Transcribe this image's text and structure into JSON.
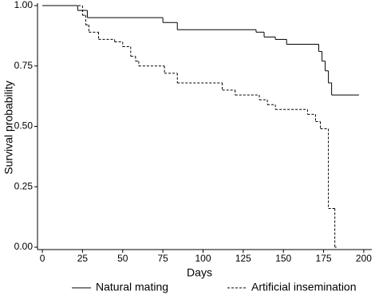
{
  "chart_data": {
    "type": "step",
    "x_label": "Days",
    "y_label": "Survival probability",
    "xlim": [
      -3,
      205
    ],
    "ylim": [
      0,
      1
    ],
    "xticks": [
      0,
      25,
      50,
      75,
      100,
      125,
      150,
      175,
      200
    ],
    "yticks": [
      {
        "value": 0,
        "label": "0.00"
      },
      {
        "value": 0.25,
        "label": "0.25"
      },
      {
        "value": 0.5,
        "label": "0.50"
      },
      {
        "value": 0.75,
        "label": "0.75"
      },
      {
        "value": 1,
        "label": "1.00"
      }
    ],
    "series": [
      {
        "name": "Natural mating",
        "color": "#000000",
        "line_style": "solid",
        "x": [
          0,
          22,
          28,
          75,
          84,
          133,
          138,
          145,
          152,
          172,
          174,
          176,
          178,
          180,
          197
        ],
        "values": [
          1,
          0.98,
          0.95,
          0.93,
          0.9,
          0.89,
          0.87,
          0.86,
          0.84,
          0.81,
          0.77,
          0.73,
          0.68,
          0.63,
          0.63
        ]
      },
      {
        "name": "Artificial insemination",
        "color": "#000000",
        "line_style": "dashed",
        "x": [
          0,
          25,
          27,
          29,
          35,
          45,
          50,
          55,
          58,
          60,
          76,
          84,
          112,
          120,
          135,
          140,
          145,
          165,
          170,
          173,
          178,
          182,
          183
        ],
        "values": [
          1,
          0.96,
          0.92,
          0.89,
          0.86,
          0.85,
          0.83,
          0.79,
          0.77,
          0.75,
          0.72,
          0.68,
          0.65,
          0.63,
          0.61,
          0.59,
          0.57,
          0.55,
          0.52,
          0.49,
          0.16,
          0,
          0
        ]
      }
    ]
  }
}
